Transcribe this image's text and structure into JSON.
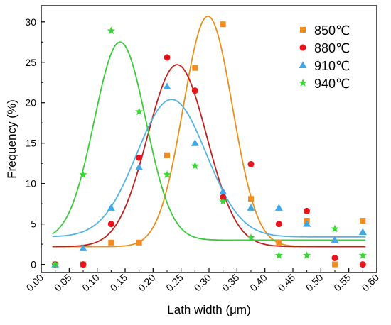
{
  "chart_data": {
    "type": "scatter",
    "xlabel": "Lath width (μm)",
    "ylabel": "Frequency (%)",
    "xlim": [
      0.0,
      0.6
    ],
    "ylim": [
      -1,
      32
    ],
    "x_ticks": [
      "0.00",
      "0.05",
      "0.10",
      "0.15",
      "0.20",
      "0.25",
      "0.30",
      "0.35",
      "0.40",
      "0.45",
      "0.50",
      "0.55",
      "0.60"
    ],
    "y_ticks": [
      "0",
      "5",
      "10",
      "15",
      "20",
      "25",
      "30"
    ],
    "grid": false,
    "legend_position": "top-right",
    "series": [
      {
        "name": "850℃",
        "marker": "square",
        "color": "#F28C1E",
        "curve_color": "#E8901C",
        "x": [
          0.025,
          0.075,
          0.125,
          0.175,
          0.225,
          0.275,
          0.325,
          0.375,
          0.425,
          0.475,
          0.525,
          0.575
        ],
        "y": [
          0.0,
          0.0,
          2.7,
          2.7,
          13.5,
          24.3,
          29.7,
          8.1,
          2.7,
          5.4,
          0.0,
          5.4
        ],
        "fit": {
          "y0": 2.2,
          "A": 28.5,
          "xc": 0.298,
          "w": 0.044
        }
      },
      {
        "name": "880℃",
        "marker": "circle",
        "color": "#E8141C",
        "curve_color": "#C0201E",
        "x": [
          0.025,
          0.075,
          0.125,
          0.175,
          0.225,
          0.275,
          0.325,
          0.375,
          0.425,
          0.475,
          0.525,
          0.575
        ],
        "y": [
          0.0,
          0.0,
          5.0,
          13.2,
          25.6,
          21.5,
          8.3,
          12.4,
          5.0,
          6.6,
          0.8,
          0.0
        ],
        "fit": {
          "y0": 2.2,
          "A": 22.5,
          "xc": 0.243,
          "w": 0.053
        }
      },
      {
        "name": "910℃",
        "marker": "triangle",
        "color": "#3FA9E8",
        "curve_color": "#55B4E0",
        "x": [
          0.025,
          0.075,
          0.125,
          0.175,
          0.225,
          0.275,
          0.325,
          0.375,
          0.425,
          0.475,
          0.525,
          0.575
        ],
        "y": [
          0.0,
          2.0,
          7.0,
          12.0,
          22.0,
          15.0,
          9.0,
          7.0,
          7.0,
          5.0,
          3.0,
          4.0
        ],
        "fit": {
          "y0": 3.4,
          "A": 17.0,
          "xc": 0.233,
          "w": 0.062
        }
      },
      {
        "name": "940℃",
        "marker": "star",
        "color": "#39D834",
        "curve_color": "#3CCB3C",
        "x": [
          0.025,
          0.075,
          0.125,
          0.175,
          0.225,
          0.275,
          0.325,
          0.375,
          0.425,
          0.475,
          0.525,
          0.575
        ],
        "y": [
          0.0,
          11.1,
          28.9,
          18.9,
          11.1,
          12.2,
          7.8,
          3.3,
          1.1,
          1.1,
          4.4,
          1.1
        ],
        "fit": {
          "y0": 3.0,
          "A": 24.5,
          "xc": 0.141,
          "w": 0.046
        }
      }
    ]
  }
}
